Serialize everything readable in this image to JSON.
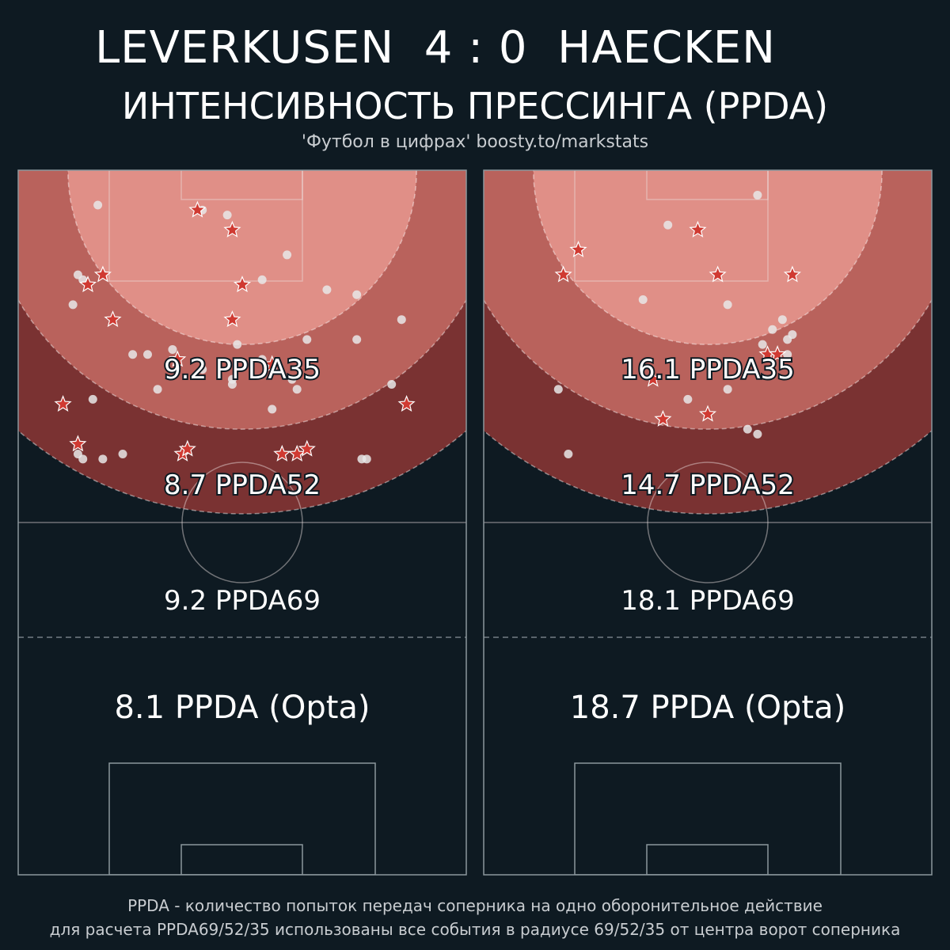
{
  "header": {
    "title": "LEVERKUSEN  4 : 0  HAECKEN",
    "subtitle": "ИНТЕНСИВНОСТЬ ПРЕССИНГА (PPDA)",
    "credit": "'Футбол в цифрах' boosty.to/markstats"
  },
  "footer": {
    "line1": "PPDA - количество попыток передач соперника на одно оборонительное действие",
    "line2": "для расчета PPDA69/52/35 использованы все события в радиусе 69/52/35 от центра ворот соперника"
  },
  "colors": {
    "background": "#0e1a22",
    "zone35": "#e08f87",
    "zone52": "#b9625c",
    "zone69": "#7a3232",
    "pass_dot": "#e8e8e8",
    "defensive_star": "#d03a32"
  },
  "chart_data": [
    {
      "type": "scatter",
      "team": "Leverkusen",
      "zones": [
        {
          "radius": 35,
          "label": "9.2 PPDA35",
          "value": 9.2
        },
        {
          "radius": 52,
          "label": "8.7 PPDA52",
          "value": 8.7
        },
        {
          "radius": 69,
          "label": "9.2 PPDA69",
          "value": 9.2
        }
      ],
      "opta": {
        "label": "8.1 PPDA (Opta)",
        "value": 8.1
      },
      "passes": [
        [
          -29,
          7
        ],
        [
          -8,
          8
        ],
        [
          -3,
          9
        ],
        [
          9,
          17
        ],
        [
          17,
          24
        ],
        [
          -33,
          21
        ],
        [
          -32,
          22
        ],
        [
          -34,
          27
        ],
        [
          4,
          22
        ],
        [
          23,
          25
        ],
        [
          32,
          30
        ],
        [
          23,
          34
        ],
        [
          13,
          34
        ],
        [
          -22,
          37
        ],
        [
          -19,
          37
        ],
        [
          -14,
          36
        ],
        [
          -1,
          35
        ],
        [
          -2,
          42
        ],
        [
          -8,
          40
        ],
        [
          10,
          42
        ],
        [
          -2,
          43
        ],
        [
          4,
          38
        ],
        [
          -30,
          46
        ],
        [
          -17,
          44
        ],
        [
          30,
          43
        ],
        [
          6,
          48
        ],
        [
          11,
          44
        ],
        [
          -32,
          58
        ],
        [
          -33,
          57
        ],
        [
          -24,
          57
        ],
        [
          -28,
          58
        ],
        [
          24,
          58
        ],
        [
          25,
          58
        ]
      ],
      "defensive": [
        [
          -9,
          8
        ],
        [
          -2,
          12
        ],
        [
          -28,
          21
        ],
        [
          -31,
          23
        ],
        [
          -26,
          30
        ],
        [
          -2,
          30
        ],
        [
          0,
          23
        ],
        [
          -13,
          38
        ],
        [
          6,
          39
        ],
        [
          -36,
          47
        ],
        [
          33,
          47
        ],
        [
          -33,
          55
        ],
        [
          -12,
          57
        ],
        [
          -11,
          56
        ],
        [
          8,
          57
        ],
        [
          11,
          57
        ],
        [
          13,
          56
        ]
      ]
    },
    {
      "type": "scatter",
      "team": "Haecken",
      "zones": [
        {
          "radius": 35,
          "label": "16.1 PPDA35",
          "value": 16.1
        },
        {
          "radius": 52,
          "label": "14.7 PPDA52",
          "value": 14.7
        },
        {
          "radius": 69,
          "label": "18.1 PPDA69",
          "value": 18.1
        }
      ],
      "opta": {
        "label": "18.7 PPDA (Opta)",
        "value": 18.7
      },
      "passes": [
        [
          -26,
          16
        ],
        [
          -8,
          11
        ],
        [
          10,
          5
        ],
        [
          -13,
          26
        ],
        [
          4,
          27
        ],
        [
          13,
          32
        ],
        [
          15,
          30
        ],
        [
          16,
          34
        ],
        [
          11,
          35
        ],
        [
          17,
          33
        ],
        [
          16,
          37
        ],
        [
          -30,
          44
        ],
        [
          -4,
          46
        ],
        [
          4,
          44
        ],
        [
          8,
          52
        ],
        [
          10,
          53
        ],
        [
          -28,
          57
        ]
      ],
      "defensive": [
        [
          -26,
          16
        ],
        [
          -29,
          21
        ],
        [
          -2,
          12
        ],
        [
          2,
          21
        ],
        [
          17,
          21
        ],
        [
          12,
          37
        ],
        [
          14,
          37
        ],
        [
          -11,
          42
        ],
        [
          -9,
          50
        ],
        [
          0,
          49
        ]
      ]
    }
  ]
}
